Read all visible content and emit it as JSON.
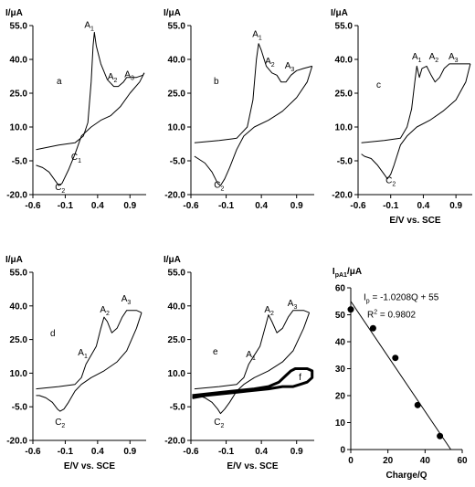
{
  "chart_data": [
    {
      "id": "a",
      "type": "line",
      "panel_label": "a",
      "ylabel": "I/μA",
      "xlabel": "",
      "xlim": [
        -0.6,
        1.15
      ],
      "ylim": [
        -20.0,
        55.0
      ],
      "x_ticks": [
        "-0.6",
        "-0.1",
        "0.4",
        "0.9"
      ],
      "x_tick_values": [
        -0.6,
        -0.1,
        0.4,
        0.9
      ],
      "y_ticks": [
        "-20.0",
        "-5.0",
        "10.0",
        "25.0",
        "40.0",
        "55.0"
      ],
      "y_tick_values": [
        -20,
        -5,
        10,
        25,
        40,
        55
      ],
      "annotations": [
        {
          "text": "A",
          "sub": "1",
          "x": 0.27,
          "y": 54
        },
        {
          "text": "A",
          "sub": "2",
          "x": 0.63,
          "y": 31
        },
        {
          "text": "A",
          "sub": "3",
          "x": 0.89,
          "y": 32
        },
        {
          "text": "C",
          "sub": "1",
          "x": 0.07,
          "y": -4.5
        },
        {
          "text": "C",
          "sub": "2",
          "x": -0.18,
          "y": -18
        }
      ],
      "series": [
        {
          "x": [
            -0.55,
            -0.2,
            0.05,
            0.18,
            0.25,
            0.3,
            0.33,
            0.35,
            0.38,
            0.45,
            0.55,
            0.65,
            0.72,
            0.8,
            0.85,
            0.9,
            1.0,
            1.1,
            1.12
          ],
          "y": [
            0,
            2,
            3,
            6,
            12,
            30,
            46,
            52,
            46,
            38,
            31,
            28,
            28,
            30,
            32,
            32,
            32,
            33,
            34
          ]
        },
        {
          "x": [
            1.12,
            1.05,
            0.9,
            0.75,
            0.6,
            0.45,
            0.3,
            0.15,
            0.05,
            -0.05,
            -0.15,
            -0.2,
            -0.25,
            -0.35,
            -0.45,
            -0.55
          ],
          "y": [
            34,
            30,
            25,
            19,
            15,
            13,
            10,
            6,
            -2,
            -9,
            -15,
            -16,
            -14,
            -10,
            -8,
            -7
          ]
        }
      ]
    },
    {
      "id": "b",
      "type": "line",
      "panel_label": "b",
      "ylabel": "I/μA",
      "xlabel": "",
      "xlim": [
        -0.6,
        1.15
      ],
      "ylim": [
        -20.0,
        55.0
      ],
      "x_ticks": [
        "-0.6",
        "-0.1",
        "0.4",
        "0.9"
      ],
      "x_tick_values": [
        -0.6,
        -0.1,
        0.4,
        0.9
      ],
      "y_ticks": [
        "-20.0",
        "-5.0",
        "10.0",
        "25.0",
        "40.0",
        "55.0"
      ],
      "y_tick_values": [
        -20,
        -5,
        10,
        25,
        40,
        55
      ],
      "annotations": [
        {
          "text": "A",
          "sub": "1",
          "x": 0.34,
          "y": 50
        },
        {
          "text": "A",
          "sub": "2",
          "x": 0.52,
          "y": 38
        },
        {
          "text": "A",
          "sub": "3",
          "x": 0.8,
          "y": 36
        },
        {
          "text": "C",
          "sub": "2",
          "x": -0.2,
          "y": -17
        }
      ],
      "series": [
        {
          "x": [
            -0.55,
            -0.2,
            0.05,
            0.2,
            0.28,
            0.33,
            0.36,
            0.4,
            0.47,
            0.55,
            0.62,
            0.68,
            0.75,
            0.82,
            0.9,
            1.0,
            1.12
          ],
          "y": [
            3,
            4,
            5,
            10,
            22,
            40,
            47,
            44,
            37,
            34,
            33,
            30,
            30,
            33,
            35,
            36,
            37
          ]
        },
        {
          "x": [
            1.12,
            1.05,
            0.9,
            0.7,
            0.5,
            0.3,
            0.15,
            0.05,
            -0.05,
            -0.12,
            -0.18,
            -0.22,
            -0.3,
            -0.4,
            -0.5,
            -0.55
          ],
          "y": [
            37,
            30,
            23,
            17,
            13,
            10,
            6,
            0,
            -8,
            -13,
            -16,
            -15,
            -10,
            -6,
            -4,
            -3
          ]
        }
      ]
    },
    {
      "id": "c",
      "type": "line",
      "panel_label": "c",
      "ylabel": "I/μA",
      "xlabel": "E/V vs. SCE",
      "xlim": [
        -0.6,
        1.15
      ],
      "ylim": [
        -20.0,
        55.0
      ],
      "x_ticks": [
        "-0.6",
        "-0.1",
        "0.4",
        "0.9"
      ],
      "x_tick_values": [
        -0.6,
        -0.1,
        0.4,
        0.9
      ],
      "y_ticks": [
        "-20.0",
        "-5.0",
        "10.0",
        "25.0",
        "40.0",
        "55.0"
      ],
      "y_tick_values": [
        -20,
        -5,
        10,
        25,
        40,
        55
      ],
      "annotations": [
        {
          "text": "A",
          "sub": "1",
          "x": 0.3,
          "y": 40
        },
        {
          "text": "A",
          "sub": "2",
          "x": 0.56,
          "y": 40
        },
        {
          "text": "A",
          "sub": "3",
          "x": 0.86,
          "y": 40
        },
        {
          "text": "C",
          "sub": "2",
          "x": -0.1,
          "y": -15
        }
      ],
      "series": [
        {
          "x": [
            -0.55,
            -0.2,
            0.05,
            0.15,
            0.22,
            0.27,
            0.3,
            0.34,
            0.38,
            0.45,
            0.52,
            0.58,
            0.65,
            0.72,
            0.8,
            0.9,
            1.0,
            1.12
          ],
          "y": [
            3,
            4,
            5,
            10,
            18,
            30,
            37,
            32,
            36,
            37,
            33,
            30,
            32,
            36,
            38,
            38,
            38,
            38
          ]
        },
        {
          "x": [
            1.12,
            1.05,
            0.9,
            0.7,
            0.5,
            0.3,
            0.15,
            0.05,
            -0.05,
            -0.1,
            -0.15,
            -0.2,
            -0.3,
            -0.4,
            -0.5,
            -0.55
          ],
          "y": [
            38,
            30,
            22,
            17,
            13,
            10,
            6,
            2,
            -7,
            -11,
            -13,
            -11,
            -7,
            -4,
            -3,
            -2
          ]
        }
      ]
    },
    {
      "id": "d",
      "type": "line",
      "panel_label": "d",
      "ylabel": "I/μA",
      "xlabel": "E/V vs. SCE",
      "xlim": [
        -0.6,
        1.15
      ],
      "ylim": [
        -20.0,
        55.0
      ],
      "x_ticks": [
        "-0.6",
        "-0.1",
        "0.4",
        "0.9"
      ],
      "x_tick_values": [
        -0.6,
        -0.1,
        0.4,
        0.9
      ],
      "y_ticks": [
        "-20.0",
        "-5.0",
        "10.0",
        "25.0",
        "40.0",
        "55.0"
      ],
      "y_tick_values": [
        -20,
        -5,
        10,
        25,
        40,
        55
      ],
      "annotations": [
        {
          "text": "A",
          "sub": "1",
          "x": 0.17,
          "y": 18
        },
        {
          "text": "A",
          "sub": "2",
          "x": 0.51,
          "y": 37
        },
        {
          "text": "A",
          "sub": "3",
          "x": 0.84,
          "y": 42
        },
        {
          "text": "C",
          "sub": "2",
          "x": -0.18,
          "y": -13
        }
      ],
      "series": [
        {
          "x": [
            -0.55,
            -0.2,
            0.05,
            0.15,
            0.22,
            0.3,
            0.38,
            0.45,
            0.5,
            0.55,
            0.62,
            0.7,
            0.78,
            0.85,
            0.92,
            1.0,
            1.08
          ],
          "y": [
            3,
            4,
            5,
            8,
            14,
            18,
            22,
            30,
            35,
            33,
            28,
            30,
            35,
            38,
            38,
            38,
            37
          ]
        },
        {
          "x": [
            1.08,
            1.0,
            0.85,
            0.7,
            0.5,
            0.3,
            0.15,
            0.05,
            -0.05,
            -0.12,
            -0.18,
            -0.22,
            -0.3,
            -0.4,
            -0.5,
            -0.55
          ],
          "y": [
            37,
            30,
            20,
            15,
            11,
            8,
            5,
            2,
            -3,
            -6,
            -7,
            -6,
            -3,
            -1,
            0,
            0
          ]
        }
      ]
    },
    {
      "id": "e",
      "type": "line",
      "panel_label": "e",
      "ylabel": "I/μA",
      "xlabel": "E/V vs. SCE",
      "xlim": [
        -0.6,
        1.15
      ],
      "ylim": [
        -20.0,
        55.0
      ],
      "x_ticks": [
        "-0.6",
        "-0.1",
        "0.4",
        "0.9"
      ],
      "x_tick_values": [
        -0.6,
        -0.1,
        0.4,
        0.9
      ],
      "y_ticks": [
        "-20.0",
        "-5.0",
        "10.0",
        "25.0",
        "40.0",
        "55.0"
      ],
      "y_tick_values": [
        -20,
        -5,
        10,
        25,
        40,
        55
      ],
      "annotations": [
        {
          "text": "A",
          "sub": "1",
          "x": 0.25,
          "y": 17
        },
        {
          "text": "A",
          "sub": "2",
          "x": 0.51,
          "y": 37
        },
        {
          "text": "A",
          "sub": "3",
          "x": 0.84,
          "y": 40
        },
        {
          "text": "C",
          "sub": "2",
          "x": -0.2,
          "y": -13
        },
        {
          "text": "f",
          "sub": "",
          "x": 0.95,
          "y": 7
        }
      ],
      "series": [
        {
          "name": "e",
          "x": [
            -0.55,
            -0.2,
            0.05,
            0.15,
            0.22,
            0.3,
            0.38,
            0.45,
            0.5,
            0.55,
            0.62,
            0.7,
            0.78,
            0.85,
            0.92,
            1.0,
            1.08
          ],
          "y": [
            3,
            4,
            5,
            8,
            14,
            18,
            22,
            30,
            36,
            33,
            28,
            30,
            35,
            38,
            38,
            38,
            37
          ]
        },
        {
          "name": "e",
          "x": [
            1.08,
            1.0,
            0.85,
            0.7,
            0.5,
            0.3,
            0.15,
            0.05,
            -0.05,
            -0.12,
            -0.18,
            -0.22,
            -0.3,
            -0.4,
            -0.5,
            -0.55
          ],
          "y": [
            37,
            30,
            20,
            15,
            11,
            8,
            5,
            2,
            -3,
            -6,
            -8,
            -6,
            -3,
            -1,
            0,
            0
          ]
        },
        {
          "name": "f",
          "thick": true,
          "x": [
            -0.58,
            -0.3,
            0.0,
            0.3,
            0.5,
            0.65,
            0.75,
            0.82,
            0.88,
            0.95,
            1.05,
            1.12,
            1.12,
            1.05,
            0.95,
            0.85,
            0.7,
            0.5,
            0.2,
            -0.1,
            -0.4,
            -0.58
          ],
          "y": [
            0,
            1,
            2,
            3,
            4,
            6,
            9,
            11,
            12,
            12,
            12,
            11,
            8,
            6,
            5,
            4,
            4,
            3,
            2,
            1,
            0,
            -1
          ]
        }
      ]
    },
    {
      "id": "g",
      "type": "scatter",
      "panel_label": "",
      "ylabel": "I",
      "ylabel_sub": "pA1",
      "ylabel_unit": "/μA",
      "xlabel": "Charge/Q",
      "xlim": [
        0,
        60
      ],
      "ylim": [
        0,
        60
      ],
      "x_ticks": [
        "0",
        "20",
        "40",
        "60"
      ],
      "x_tick_values": [
        0,
        20,
        40,
        60
      ],
      "y_ticks": [
        "0",
        "10",
        "20",
        "30",
        "40",
        "50",
        "60"
      ],
      "y_tick_values": [
        0,
        10,
        20,
        30,
        40,
        50,
        60
      ],
      "equation_lhs": "I",
      "equation_sub": "p",
      "equation_rhs": " = -1.0208Q + 55",
      "r2_lhs": "R",
      "r2_sup": "2",
      "r2_rhs": " = 0.9802",
      "points": {
        "x": [
          0,
          12,
          24,
          36,
          48
        ],
        "y": [
          52,
          45,
          34,
          16.5,
          5
        ]
      },
      "fit": {
        "slope": -1.0208,
        "intercept": 55,
        "x_range": [
          0,
          53.8
        ]
      }
    }
  ]
}
